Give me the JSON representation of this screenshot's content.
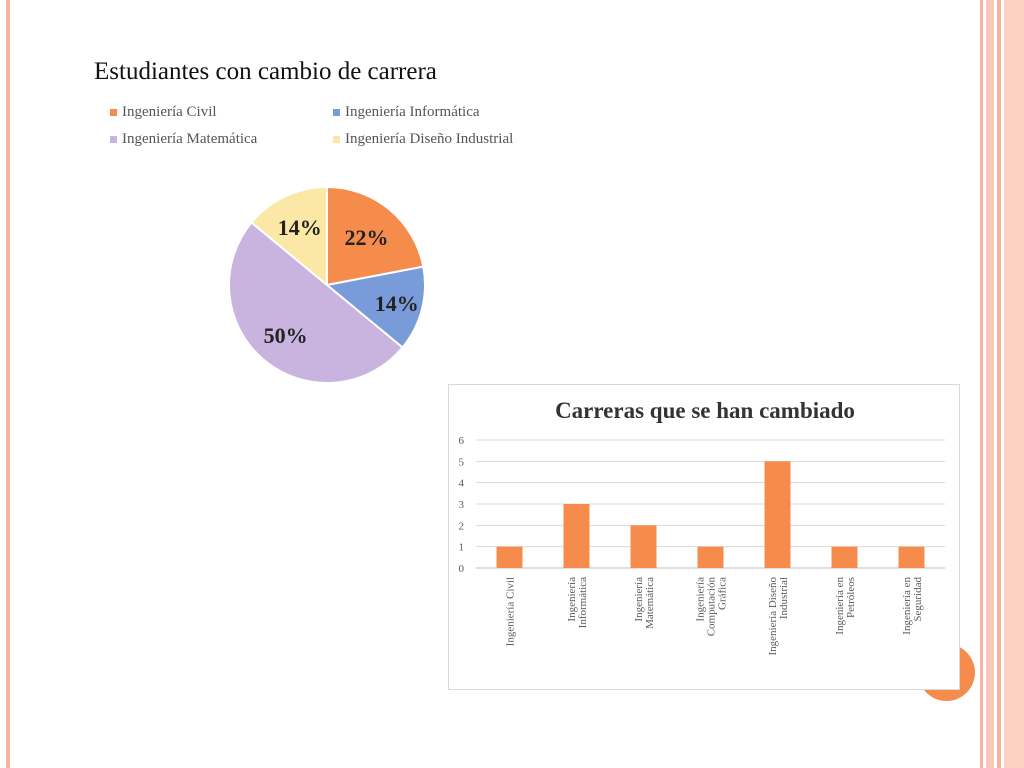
{
  "colors": {
    "civil": "#f68c4c",
    "informatica": "#7a9bd9",
    "matematica": "#c8b4de",
    "diseno": "#fbe8a6",
    "bar": "#f68c4c",
    "frame": "#f5b3a0"
  },
  "chart_data": [
    {
      "type": "pie",
      "title": "Estudiantes con cambio de carrera",
      "legend_position": "top",
      "slices": [
        {
          "label": "Ingeniería Civil",
          "value": 22,
          "display": "22%",
          "color": "#f68c4c"
        },
        {
          "label": "Ingeniería Informática",
          "value": 14,
          "display": "14%",
          "color": "#7a9bd9"
        },
        {
          "label": "Ingeniería Matemática",
          "value": 50,
          "display": "50%",
          "color": "#c8b4de"
        },
        {
          "label": "Ingeniería Diseño Industrial",
          "value": 14,
          "display": "14%",
          "color": "#fbe8a6"
        }
      ]
    },
    {
      "type": "bar",
      "title": "Carreras que se han cambiado",
      "categories": [
        [
          "Ingeniería Civil"
        ],
        [
          "Ingeniería",
          "Informática"
        ],
        [
          "Ingeniería",
          "Matemática"
        ],
        [
          "Ingeniería",
          "Computación",
          "Gráfica"
        ],
        [
          "Ingeniería Diseño",
          "Industrial"
        ],
        [
          "Ingeniería en",
          "Petróleos"
        ],
        [
          "Ingeniería en",
          "Seguridad"
        ]
      ],
      "values": [
        1,
        3,
        2,
        1,
        5,
        1,
        1
      ],
      "ylim": [
        0,
        6
      ],
      "yticks": [
        0,
        1,
        2,
        3,
        4,
        5,
        6
      ],
      "grid": true
    }
  ]
}
